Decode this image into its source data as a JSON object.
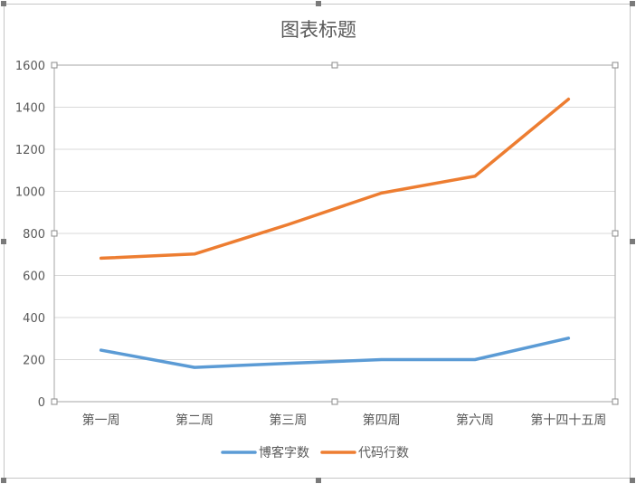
{
  "chart_data": {
    "type": "line",
    "title": "图表标题",
    "categories": [
      "第一周",
      "第二周",
      "第三周",
      "第四周",
      "第六周",
      "第十四十五周"
    ],
    "series": [
      {
        "name": "博客字数",
        "color": "#5b9bd5",
        "values": [
          245,
          163,
          182,
          200,
          200,
          302
        ]
      },
      {
        "name": "代码行数",
        "color": "#ed7d31",
        "values": [
          682,
          702,
          842,
          992,
          1072,
          1438
        ]
      }
    ],
    "ylim": [
      0,
      1600
    ],
    "yticks": [
      "0",
      "200",
      "400",
      "600",
      "800",
      "1000",
      "1200",
      "1400",
      "1600"
    ],
    "grid": true,
    "legend": "bottom"
  }
}
